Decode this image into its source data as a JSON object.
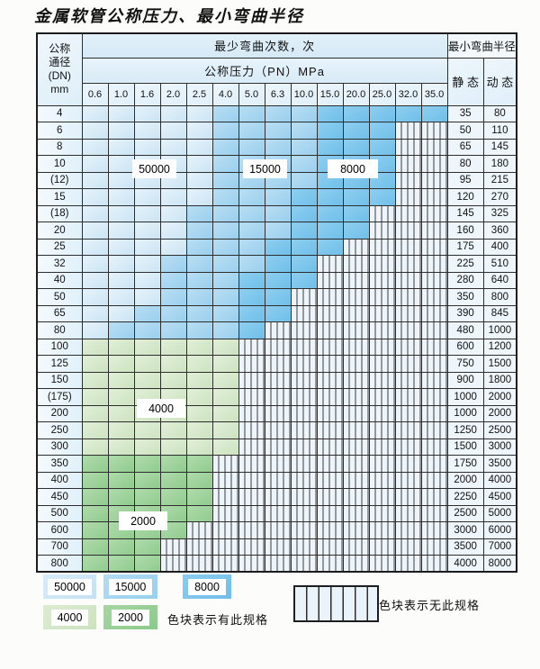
{
  "title": "金属软管公称压力、最小弯曲半径",
  "table": {
    "dn_header_lines": [
      "公称",
      "通径",
      "(DN)",
      "mm"
    ],
    "bend_times_header": "最少弯曲次数，次",
    "pressure_header": "公称压力（PN）MPa",
    "radius_header": "最小弯曲半径",
    "static_header": "静 态",
    "dynamic_header": "动 态",
    "pressure_cols": [
      "0.6",
      "1.0",
      "1.6",
      "2.0",
      "2.5",
      "4.0",
      "5.0",
      "6.3",
      "10.0",
      "15.0",
      "20.0",
      "25.0",
      "32.0",
      "35.0"
    ],
    "shade_meaning": {
      "1": "50000",
      "2": "15000",
      "3": "8000",
      "4": "4000",
      "5": "2000",
      "0": "none"
    },
    "rows": [
      {
        "dn": "4",
        "cells": "11111222233333",
        "static": "35",
        "dynamic": "80"
      },
      {
        "dn": "6",
        "cells": "11111222233300",
        "static": "50",
        "dynamic": "110"
      },
      {
        "dn": "8",
        "cells": "11111222233300",
        "static": "65",
        "dynamic": "145"
      },
      {
        "dn": "10",
        "cells": "11111222233300",
        "static": "80",
        "dynamic": "180"
      },
      {
        "dn": "(12)",
        "cells": "11111222233300",
        "static": "95",
        "dynamic": "215"
      },
      {
        "dn": "15",
        "cells": "11111222333300",
        "static": "120",
        "dynamic": "270"
      },
      {
        "dn": "(18)",
        "cells": "11112222333000",
        "static": "145",
        "dynamic": "325"
      },
      {
        "dn": "20",
        "cells": "11112222333000",
        "static": "160",
        "dynamic": "360"
      },
      {
        "dn": "25",
        "cells": "11112223330000",
        "static": "175",
        "dynamic": "400"
      },
      {
        "dn": "32",
        "cells": "11122223300000",
        "static": "225",
        "dynamic": "510"
      },
      {
        "dn": "40",
        "cells": "11122233300000",
        "static": "280",
        "dynamic": "640"
      },
      {
        "dn": "50",
        "cells": "11122233000000",
        "static": "350",
        "dynamic": "800"
      },
      {
        "dn": "65",
        "cells": "11222233000000",
        "static": "390",
        "dynamic": "845"
      },
      {
        "dn": "80",
        "cells": "12222230000000",
        "static": "480",
        "dynamic": "1000"
      },
      {
        "dn": "100",
        "cells": "44444400000000",
        "static": "600",
        "dynamic": "1200"
      },
      {
        "dn": "125",
        "cells": "44444400000000",
        "static": "750",
        "dynamic": "1500"
      },
      {
        "dn": "150",
        "cells": "44444400000000",
        "static": "900",
        "dynamic": "1800"
      },
      {
        "dn": "(175)",
        "cells": "44444400000000",
        "static": "1000",
        "dynamic": "2000"
      },
      {
        "dn": "200",
        "cells": "44444400000000",
        "static": "1000",
        "dynamic": "2000"
      },
      {
        "dn": "250",
        "cells": "44444400000000",
        "static": "1250",
        "dynamic": "2500"
      },
      {
        "dn": "300",
        "cells": "44444400000000",
        "static": "1500",
        "dynamic": "3000"
      },
      {
        "dn": "350",
        "cells": "55555000000000",
        "static": "1750",
        "dynamic": "3500"
      },
      {
        "dn": "400",
        "cells": "55555000000000",
        "static": "2000",
        "dynamic": "4000"
      },
      {
        "dn": "450",
        "cells": "55555000000000",
        "static": "2250",
        "dynamic": "4500"
      },
      {
        "dn": "500",
        "cells": "55555000000000",
        "static": "2500",
        "dynamic": "5000"
      },
      {
        "dn": "600",
        "cells": "55550000000000",
        "static": "3000",
        "dynamic": "6000"
      },
      {
        "dn": "700",
        "cells": "55500000000000",
        "static": "3500",
        "dynamic": "7000"
      },
      {
        "dn": "800",
        "cells": "55500000000000",
        "static": "4000",
        "dynamic": "8000"
      }
    ]
  },
  "region_labels": [
    "50000",
    "15000",
    "8000",
    "4000",
    "2000"
  ],
  "legend": {
    "swatches": [
      {
        "label": "50000",
        "code": "1"
      },
      {
        "label": "15000",
        "code": "2"
      },
      {
        "label": "8000",
        "code": "3"
      },
      {
        "label": "4000",
        "code": "4"
      },
      {
        "label": "2000",
        "code": "5"
      }
    ],
    "has_spec_text": "色块表示有此规格",
    "no_spec_text": "色块表示无此规格"
  },
  "colors": {
    "blue_light_50000": "#cfe7f6",
    "blue_mid_15000": "#a3d3ef",
    "blue_dark_8000": "#7cc3ec",
    "green_light_4000": "#d5e7cb",
    "green_mid_2000": "#9bcf98",
    "grid_line": "#2d2d2d"
  }
}
